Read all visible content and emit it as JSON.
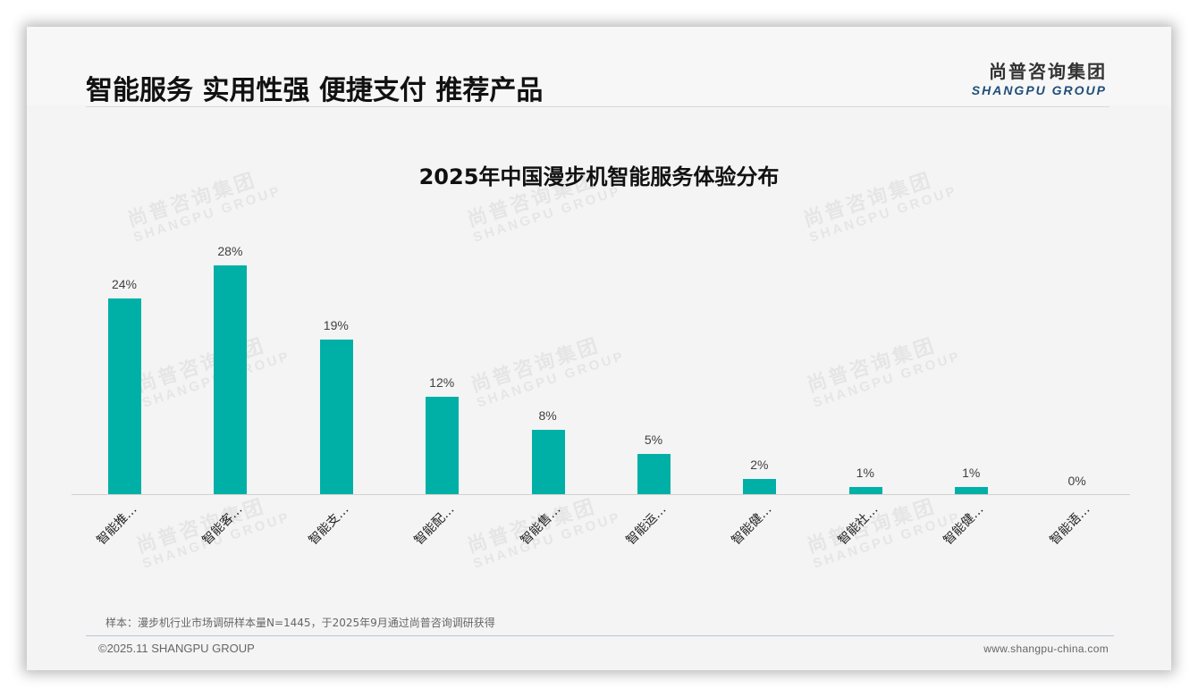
{
  "header": {
    "title": "智能服务 实用性强 便捷支付 推荐产品",
    "logo_cn": "尚普咨询集团",
    "logo_en": "SHANGPU GROUP"
  },
  "watermark": {
    "cn": "尚普咨询集团",
    "en": "SHANGPU GROUP"
  },
  "colors": {
    "bar": "#00b0a7",
    "logo_en": "#1f4e79"
  },
  "chart_data": {
    "type": "bar",
    "title": "2025年中国漫步机智能服务体验分布",
    "categories": [
      "智能推…",
      "智能客…",
      "智能支…",
      "智能配…",
      "智能售…",
      "智能运…",
      "智能健…",
      "智能社…",
      "智能健…",
      "智能语…"
    ],
    "values": [
      24,
      28,
      19,
      12,
      8,
      5,
      2,
      1,
      1,
      0
    ],
    "value_labels": [
      "24%",
      "28%",
      "19%",
      "12%",
      "8%",
      "5%",
      "2%",
      "1%",
      "1%",
      "0%"
    ],
    "xlabel": "",
    "ylabel": "",
    "ylim": [
      0,
      30
    ],
    "grid": false,
    "legend": "none",
    "unit": "%"
  },
  "footer": {
    "note": "样本：漫步机行业市场调研样本量N=1445，于2025年9月通过尚普咨询调研获得",
    "copyright": "©2025.11 SHANGPU GROUP",
    "website": "www.shangpu-china.com"
  }
}
